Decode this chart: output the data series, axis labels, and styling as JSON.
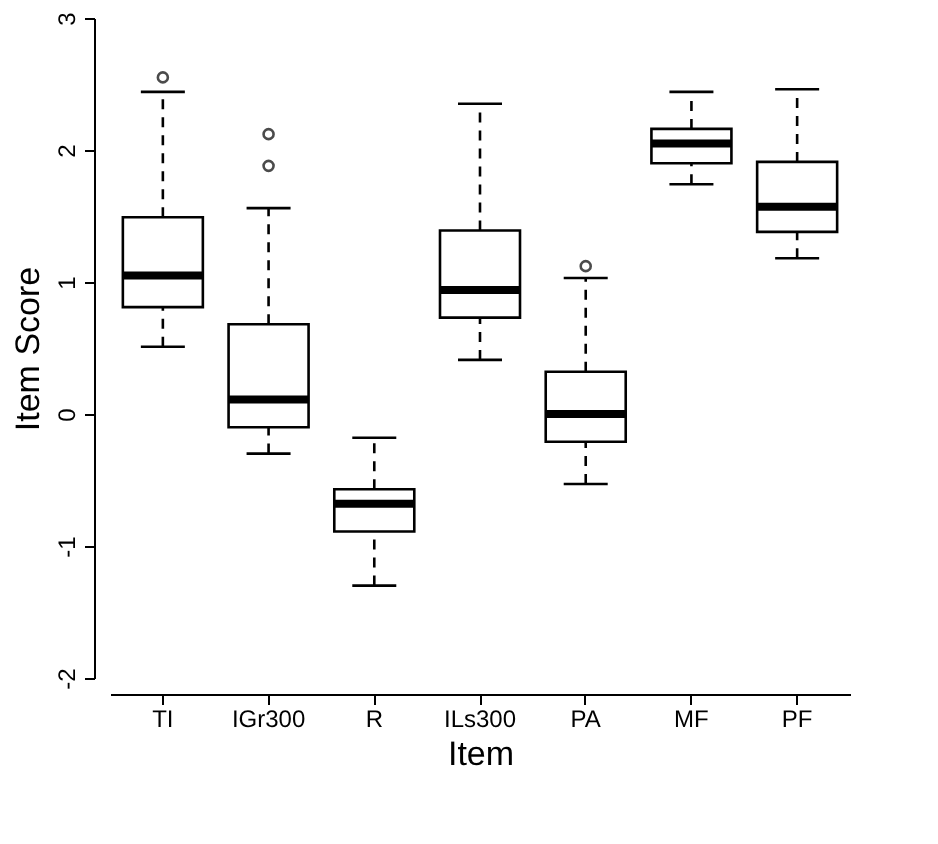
{
  "chart_data": {
    "type": "box",
    "xlabel": "Item",
    "ylabel": "Item Score",
    "categories": [
      "TI",
      "IGr300",
      "R",
      "ILs300",
      "PA",
      "MF",
      "PF"
    ],
    "ylim": [
      -2,
      3
    ],
    "yticks": [
      -2,
      -1,
      0,
      1,
      2,
      3
    ],
    "grid": false,
    "color": "#000000",
    "boxes": [
      {
        "low": 0.51,
        "q1": 0.81,
        "median": 1.05,
        "q3": 1.49,
        "high": 2.44,
        "outliers": [
          2.55
        ]
      },
      {
        "low": -0.3,
        "q1": -0.1,
        "median": 0.11,
        "q3": 0.68,
        "high": 1.56,
        "outliers": [
          1.88,
          2.12
        ]
      },
      {
        "low": -1.3,
        "q1": -0.89,
        "median": -0.68,
        "q3": -0.57,
        "high": -0.18
      },
      {
        "low": 0.41,
        "q1": 0.73,
        "median": 0.94,
        "q3": 1.39,
        "high": 2.35
      },
      {
        "low": -0.53,
        "q1": -0.21,
        "median": 0.0,
        "q3": 0.32,
        "high": 1.03,
        "outliers": [
          1.12
        ]
      },
      {
        "low": 1.74,
        "q1": 1.9,
        "median": 2.05,
        "q3": 2.16,
        "high": 2.44
      },
      {
        "low": 1.18,
        "q1": 1.38,
        "median": 1.57,
        "q3": 1.91,
        "high": 2.46
      }
    ]
  }
}
